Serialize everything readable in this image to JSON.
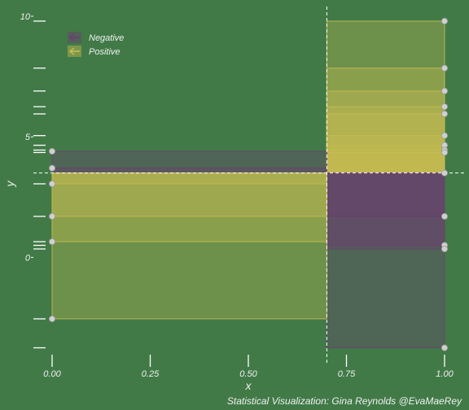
{
  "chart_data": {
    "type": "scatter",
    "title": "",
    "xlabel": "x",
    "ylabel": "y",
    "caption": "Statistical Visualization: Gina Reynolds @EvaMaeRey",
    "xlim": [
      0,
      1
    ],
    "ylim": [
      -3.8,
      10
    ],
    "x_ticks": [
      {
        "v": 0,
        "label": "0.00"
      },
      {
        "v": 0.25,
        "label": "0.25"
      },
      {
        "v": 0.5,
        "label": "0.50"
      },
      {
        "v": 0.75,
        "label": "0.75"
      },
      {
        "v": 1,
        "label": "1.00"
      }
    ],
    "y_ticks": [
      {
        "v": 0,
        "label": "0"
      },
      {
        "v": 5,
        "label": "5"
      },
      {
        "v": 10,
        "label": "10"
      }
    ],
    "mean_x": 0.7,
    "mean_y": 3.5,
    "rug_y": [
      9.8,
      7.85,
      6.9,
      6.25,
      5.95,
      5.05,
      4.65,
      4.45,
      4.35,
      3.05,
      1.7,
      0.65,
      0.5,
      0.35,
      -2.55,
      -3.75
    ],
    "legend": {
      "position": "top-left",
      "entries": [
        {
          "name": "Negative",
          "color": "#6b3f72"
        },
        {
          "name": "Positive",
          "color": "#c5bb52"
        }
      ]
    },
    "points_x0": [
      4.4,
      3.7,
      3.05,
      1.7,
      0.65,
      -2.55
    ],
    "points_x1": [
      9.8,
      7.85,
      6.9,
      6.25,
      5.95,
      5.05,
      4.65,
      4.45,
      4.35,
      3.5,
      1.7,
      0.5,
      0.35,
      -3.75
    ],
    "series": [
      {
        "name": "Positive",
        "x0": 0.7,
        "x1": 1,
        "y0": 3.5,
        "y1": 9.8
      },
      {
        "name": "Positive",
        "x0": 0.7,
        "x1": 1,
        "y0": 3.5,
        "y1": 7.85
      },
      {
        "name": "Positive",
        "x0": 0.7,
        "x1": 1,
        "y0": 3.5,
        "y1": 6.9
      },
      {
        "name": "Positive",
        "x0": 0.7,
        "x1": 1,
        "y0": 3.5,
        "y1": 6.25
      },
      {
        "name": "Positive",
        "x0": 0.7,
        "x1": 1,
        "y0": 3.5,
        "y1": 5.95
      },
      {
        "name": "Positive",
        "x0": 0.7,
        "x1": 1,
        "y0": 3.5,
        "y1": 5.05
      },
      {
        "name": "Positive",
        "x0": 0.7,
        "x1": 1,
        "y0": 3.5,
        "y1": 4.65
      },
      {
        "name": "Positive",
        "x0": 0.7,
        "x1": 1,
        "y0": 3.5,
        "y1": 4.45
      },
      {
        "name": "Positive",
        "x0": 0.7,
        "x1": 1,
        "y0": 3.5,
        "y1": 4.35
      },
      {
        "name": "Negative",
        "x0": 0.7,
        "x1": 1,
        "y0": 3.5,
        "y1": 1.7
      },
      {
        "name": "Negative",
        "x0": 0.7,
        "x1": 1,
        "y0": 3.5,
        "y1": 0.5
      },
      {
        "name": "Negative",
        "x0": 0.7,
        "x1": 1,
        "y0": 3.5,
        "y1": 0.35
      },
      {
        "name": "Negative",
        "x0": 0.7,
        "x1": 1,
        "y0": 3.5,
        "y1": -3.75
      },
      {
        "name": "Negative",
        "x0": 0,
        "x1": 0.7,
        "y0": 3.5,
        "y1": 4.4
      },
      {
        "name": "Negative",
        "x0": 0,
        "x1": 0.7,
        "y0": 3.5,
        "y1": 3.7
      },
      {
        "name": "Positive",
        "x0": 0,
        "x1": 0.7,
        "y0": 3.5,
        "y1": 3.05
      },
      {
        "name": "Positive",
        "x0": 0,
        "x1": 0.7,
        "y0": 3.5,
        "y1": 1.7
      },
      {
        "name": "Positive",
        "x0": 0,
        "x1": 0.7,
        "y0": 3.5,
        "y1": 0.65
      },
      {
        "name": "Positive",
        "x0": 0,
        "x1": 0.7,
        "y0": 3.5,
        "y1": -2.55
      }
    ]
  }
}
